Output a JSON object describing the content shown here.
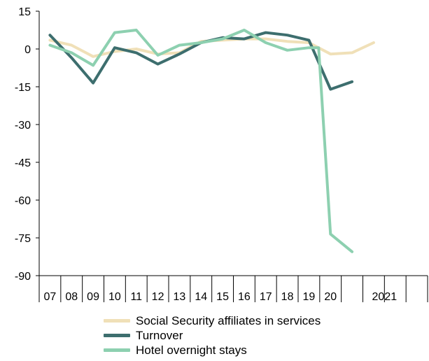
{
  "chart_data": {
    "type": "line",
    "ylim": [
      -90,
      15
    ],
    "yticks": [
      15,
      0,
      -15,
      -30,
      -45,
      -60,
      -75,
      -90
    ],
    "x_tick_labels": [
      "07",
      "08",
      "09",
      "10",
      "11",
      "12",
      "13",
      "14",
      "15",
      "16",
      "17",
      "18",
      "19",
      "20",
      "",
      "2021",
      "",
      ""
    ],
    "x_slot_count": 18,
    "grid": false,
    "legend": "bottom",
    "series": [
      {
        "name": "Social Security affiliates in services",
        "color": "#F0E0B8",
        "x": [
          0,
          1,
          2,
          3,
          4,
          5,
          6,
          7,
          8,
          9,
          10,
          11,
          12,
          13,
          14,
          15
        ],
        "values": [
          3.5,
          1.5,
          -3.0,
          -1.0,
          0.0,
          -2.0,
          -1.5,
          3.0,
          3.5,
          4.0,
          4.0,
          3.0,
          2.5,
          -2.0,
          -1.5,
          2.5
        ]
      },
      {
        "name": "Turnover",
        "color": "#3D6E6E",
        "x": [
          0,
          1,
          2,
          3,
          4,
          5,
          6,
          7,
          8,
          9,
          10,
          11,
          12,
          13,
          14
        ],
        "values": [
          5.5,
          -3.5,
          -13.5,
          0.5,
          -1.5,
          -6.0,
          -2.0,
          2.5,
          4.5,
          4.0,
          6.5,
          5.5,
          3.5,
          -16.0,
          -13.0
        ]
      },
      {
        "name": "Hotel overnight stays",
        "color": "#8DD0B0",
        "x": [
          0,
          1,
          2,
          3,
          4,
          5,
          6,
          7,
          8,
          9,
          10,
          11,
          12,
          12.45,
          13,
          14
        ],
        "values": [
          1.5,
          -1.5,
          -6.5,
          6.5,
          7.5,
          -2.5,
          1.5,
          2.5,
          4.0,
          7.5,
          2.5,
          -0.5,
          0.5,
          0.5,
          -73.5,
          -80.5
        ]
      }
    ]
  }
}
